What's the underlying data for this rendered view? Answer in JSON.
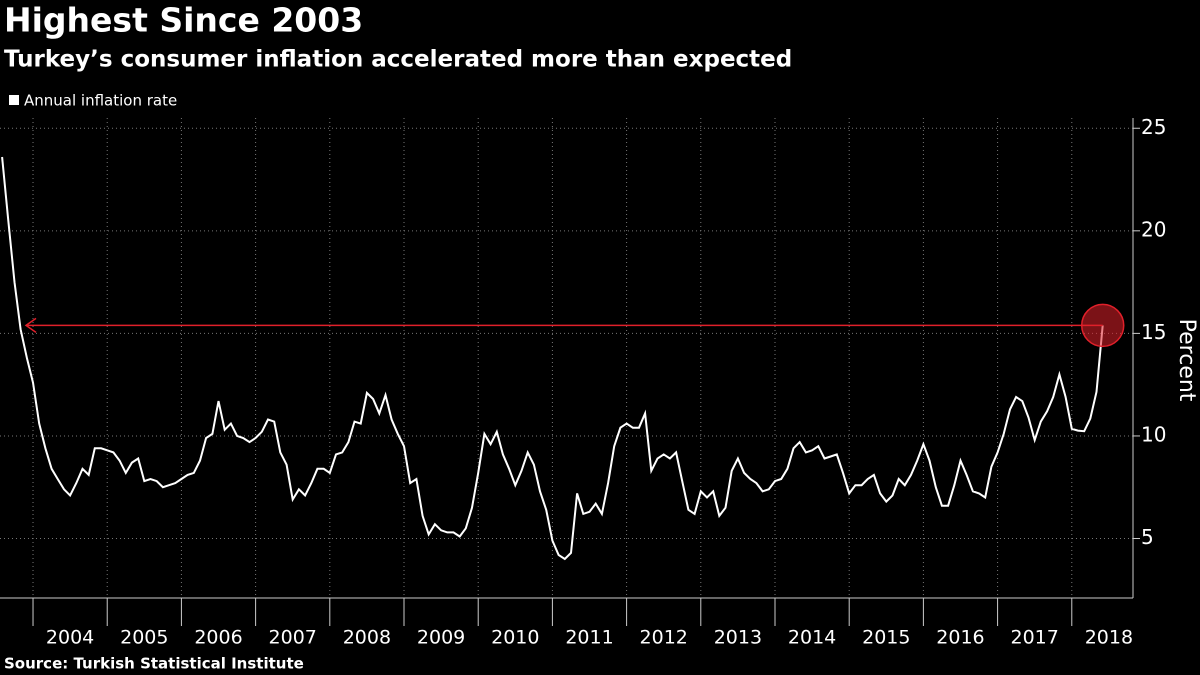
{
  "chart_data": {
    "type": "line",
    "title": "Highest Since 2003",
    "subtitle": "Turkey’s consumer inflation accelerated more than expected",
    "source": "Source: Turkish Statistical Institute",
    "y_label": "Percent",
    "legend": "top-left",
    "grid": true,
    "xlim": [
      2003.555,
      2018.825
    ],
    "xticks": [
      {
        "value": 2004,
        "label": "2004"
      },
      {
        "value": 2005,
        "label": "2005"
      },
      {
        "value": 2006,
        "label": "2006"
      },
      {
        "value": 2007,
        "label": "2007"
      },
      {
        "value": 2008,
        "label": "2008"
      },
      {
        "value": 2009,
        "label": "2009"
      },
      {
        "value": 2010,
        "label": "2010"
      },
      {
        "value": 2011,
        "label": "2011"
      },
      {
        "value": 2012,
        "label": "2012"
      },
      {
        "value": 2013,
        "label": "2013"
      },
      {
        "value": 2014,
        "label": "2014"
      },
      {
        "value": 2015,
        "label": "2015"
      },
      {
        "value": 2016,
        "label": "2016"
      },
      {
        "value": 2017,
        "label": "2017"
      },
      {
        "value": 2018,
        "label": "2018"
      }
    ],
    "ylim": [
      2.1,
      25.5
    ],
    "yticks": [
      5,
      10,
      15,
      20,
      25
    ],
    "highlight_color": "#e0202a",
    "x": [
      2003.583,
      2003.667,
      2003.75,
      2003.833,
      2003.917,
      2004,
      2004.083,
      2004.167,
      2004.25,
      2004.333,
      2004.417,
      2004.5,
      2004.583,
      2004.667,
      2004.75,
      2004.833,
      2004.917,
      2005,
      2005.083,
      2005.167,
      2005.25,
      2005.333,
      2005.417,
      2005.5,
      2005.583,
      2005.667,
      2005.75,
      2005.833,
      2005.917,
      2006,
      2006.083,
      2006.167,
      2006.25,
      2006.333,
      2006.417,
      2006.5,
      2006.583,
      2006.667,
      2006.75,
      2006.833,
      2006.917,
      2007,
      2007.083,
      2007.167,
      2007.25,
      2007.333,
      2007.417,
      2007.5,
      2007.583,
      2007.667,
      2007.75,
      2007.833,
      2007.917,
      2008,
      2008.083,
      2008.167,
      2008.25,
      2008.333,
      2008.417,
      2008.5,
      2008.583,
      2008.667,
      2008.75,
      2008.833,
      2008.917,
      2009,
      2009.083,
      2009.167,
      2009.25,
      2009.333,
      2009.417,
      2009.5,
      2009.583,
      2009.667,
      2009.75,
      2009.833,
      2009.917,
      2010,
      2010.083,
      2010.167,
      2010.25,
      2010.333,
      2010.417,
      2010.5,
      2010.583,
      2010.667,
      2010.75,
      2010.833,
      2010.917,
      2011,
      2011.083,
      2011.167,
      2011.25,
      2011.333,
      2011.417,
      2011.5,
      2011.583,
      2011.667,
      2011.75,
      2011.833,
      2011.917,
      2012,
      2012.083,
      2012.167,
      2012.25,
      2012.333,
      2012.417,
      2012.5,
      2012.583,
      2012.667,
      2012.75,
      2012.833,
      2012.917,
      2013,
      2013.083,
      2013.167,
      2013.25,
      2013.333,
      2013.417,
      2013.5,
      2013.583,
      2013.667,
      2013.75,
      2013.833,
      2013.917,
      2014,
      2014.083,
      2014.167,
      2014.25,
      2014.333,
      2014.417,
      2014.5,
      2014.583,
      2014.667,
      2014.75,
      2014.833,
      2014.917,
      2015,
      2015.083,
      2015.167,
      2015.25,
      2015.333,
      2015.417,
      2015.5,
      2015.583,
      2015.667,
      2015.75,
      2015.833,
      2015.917,
      2016,
      2016.083,
      2016.167,
      2016.25,
      2016.333,
      2016.417,
      2016.5,
      2016.583,
      2016.667,
      2016.75,
      2016.833,
      2016.917,
      2017,
      2017.083,
      2017.167,
      2017.25,
      2017.333,
      2017.417,
      2017.5,
      2017.583,
      2017.667,
      2017.75,
      2017.833,
      2017.917,
      2018,
      2018.083,
      2018.167,
      2018.25,
      2018.333,
      2018.417
    ],
    "series": [
      {
        "name": "Annual inflation rate",
        "color": "#ffffff",
        "values": [
          23.6,
          20.5,
          17.5,
          15.2,
          13.8,
          12.6,
          10.6,
          9.4,
          8.4,
          7.9,
          7.4,
          7.1,
          7.7,
          8.4,
          8.1,
          9.4,
          9.4,
          9.3,
          9.2,
          8.8,
          8.2,
          8.7,
          8.9,
          7.8,
          7.9,
          7.8,
          7.5,
          7.6,
          7.7,
          7.9,
          8.1,
          8.2,
          8.8,
          9.9,
          10.1,
          11.7,
          10.3,
          10.6,
          10.0,
          9.9,
          9.7,
          9.9,
          10.2,
          10.8,
          10.7,
          9.2,
          8.6,
          6.9,
          7.4,
          7.1,
          7.7,
          8.4,
          8.4,
          8.2,
          9.1,
          9.2,
          9.7,
          10.7,
          10.6,
          12.1,
          11.8,
          11.1,
          11.99,
          10.8,
          10.1,
          9.5,
          7.7,
          7.9,
          6.1,
          5.2,
          5.7,
          5.4,
          5.3,
          5.3,
          5.1,
          5.5,
          6.5,
          8.2,
          10.1,
          9.6,
          10.2,
          9.1,
          8.4,
          7.6,
          8.3,
          9.2,
          8.6,
          7.3,
          6.4,
          4.9,
          4.2,
          4.0,
          4.3,
          7.2,
          6.2,
          6.3,
          6.7,
          6.2,
          7.7,
          9.5,
          10.4,
          10.6,
          10.4,
          10.4,
          11.1,
          8.3,
          8.9,
          9.1,
          8.9,
          9.2,
          7.8,
          6.4,
          6.2,
          7.3,
          7.0,
          7.3,
          6.1,
          6.5,
          8.3,
          8.9,
          8.2,
          7.9,
          7.7,
          7.3,
          7.4,
          7.8,
          7.9,
          8.4,
          9.4,
          9.7,
          9.2,
          9.3,
          9.5,
          8.9,
          9.0,
          9.1,
          8.2,
          7.2,
          7.6,
          7.6,
          7.9,
          8.1,
          7.2,
          6.8,
          7.1,
          7.9,
          7.6,
          8.1,
          8.8,
          9.6,
          8.8,
          7.5,
          6.6,
          6.6,
          7.6,
          8.8,
          8.1,
          7.3,
          7.2,
          7.0,
          8.5,
          9.2,
          10.1,
          11.3,
          11.9,
          11.7,
          10.9,
          9.8,
          10.7,
          11.2,
          11.9,
          13.0,
          11.9,
          10.35,
          10.26,
          10.23,
          10.85,
          12.15,
          15.39
        ]
      }
    ]
  }
}
